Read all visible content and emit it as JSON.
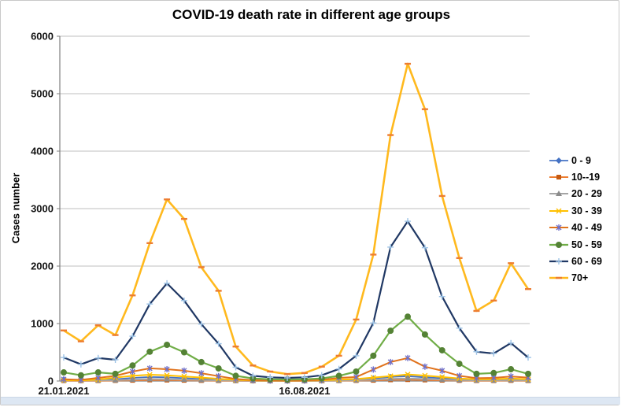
{
  "window": {
    "background": "#ffffff",
    "border_color": "#c9c9c9",
    "bottom_strip_color": "#dde7f3"
  },
  "chart_data": {
    "type": "line",
    "title": "COVID-19 death rate in different age groups",
    "ylabel": "Cases number",
    "xlabel": "",
    "ylim": [
      0,
      6000
    ],
    "yticks": [
      0,
      1000,
      2000,
      3000,
      4000,
      5000,
      6000
    ],
    "grid": true,
    "legend_position": "right",
    "x_count": 28,
    "xtick_labels": [
      {
        "index": 0,
        "label": "21.01.2021"
      },
      {
        "index": 14,
        "label": "16.08.2021"
      }
    ],
    "colors": {
      "gridline": "#BFBFBF",
      "axis": "#7F7F7F",
      "tick_text": "#141414"
    },
    "series": [
      {
        "name": "0 - 9",
        "color": "#4472C4",
        "marker": "diamond",
        "marker_color": "#4472C4",
        "width": 1.8,
        "values": [
          25,
          15,
          25,
          30,
          55,
          70,
          65,
          50,
          35,
          25,
          15,
          8,
          5,
          4,
          5,
          8,
          15,
          25,
          45,
          70,
          85,
          65,
          50,
          35,
          22,
          22,
          35,
          22
        ]
      },
      {
        "name": "10--19",
        "color": "#ED7D31",
        "marker": "square",
        "marker_color": "#C55A11",
        "width": 2,
        "values": [
          6,
          4,
          6,
          8,
          12,
          18,
          16,
          12,
          9,
          6,
          4,
          2,
          2,
          2,
          2,
          3,
          5,
          8,
          12,
          20,
          24,
          18,
          13,
          9,
          6,
          6,
          9,
          6
        ]
      },
      {
        "name": "20 - 29",
        "color": "#A5A5A5",
        "marker": "triangle",
        "marker_color": "#8C8C8C",
        "width": 2,
        "values": [
          12,
          8,
          12,
          15,
          25,
          35,
          32,
          25,
          18,
          12,
          8,
          5,
          3,
          3,
          3,
          5,
          8,
          15,
          25,
          38,
          45,
          35,
          25,
          18,
          12,
          12,
          18,
          12
        ]
      },
      {
        "name": "30 - 39",
        "color": "#FFC000",
        "marker": "x",
        "marker_color": "#FFC000",
        "width": 2,
        "values": [
          15,
          10,
          25,
          60,
          90,
          110,
          100,
          80,
          60,
          40,
          20,
          10,
          8,
          6,
          8,
          12,
          25,
          35,
          60,
          85,
          115,
          95,
          70,
          45,
          30,
          30,
          45,
          30
        ]
      },
      {
        "name": "40 - 49",
        "color": "#E0731D",
        "marker": "asterisk",
        "marker_color": "#7070C8",
        "width": 2,
        "values": [
          30,
          20,
          55,
          90,
          165,
          220,
          205,
          180,
          135,
          85,
          35,
          15,
          10,
          8,
          10,
          20,
          55,
          70,
          200,
          330,
          400,
          250,
          180,
          90,
          50,
          55,
          80,
          60
        ]
      },
      {
        "name": "50 - 59",
        "color": "#70AD47",
        "marker": "circle",
        "marker_color": "#548235",
        "width": 2.2,
        "values": [
          150,
          100,
          150,
          125,
          270,
          510,
          630,
          500,
          330,
          220,
          90,
          45,
          30,
          25,
          30,
          45,
          90,
          165,
          440,
          875,
          1120,
          810,
          535,
          300,
          125,
          140,
          205,
          125
        ]
      },
      {
        "name": "60 - 69",
        "color": "#203864",
        "marker": "plus",
        "marker_color": "#9DC3E6",
        "width": 2.2,
        "values": [
          410,
          290,
          400,
          370,
          780,
          1340,
          1700,
          1400,
          990,
          650,
          240,
          90,
          65,
          55,
          65,
          100,
          210,
          440,
          1010,
          2330,
          2780,
          2320,
          1470,
          920,
          510,
          480,
          660,
          410
        ]
      },
      {
        "name": "70+",
        "color": "#FFB91E",
        "marker": "dash",
        "marker_color": "#ED7D31",
        "width": 2.6,
        "values": [
          880,
          690,
          970,
          800,
          1490,
          2400,
          3160,
          2820,
          1980,
          1570,
          600,
          270,
          165,
          120,
          140,
          250,
          440,
          1070,
          2200,
          4280,
          5520,
          4730,
          3220,
          2140,
          1220,
          1400,
          2050,
          1600
        ]
      }
    ]
  }
}
